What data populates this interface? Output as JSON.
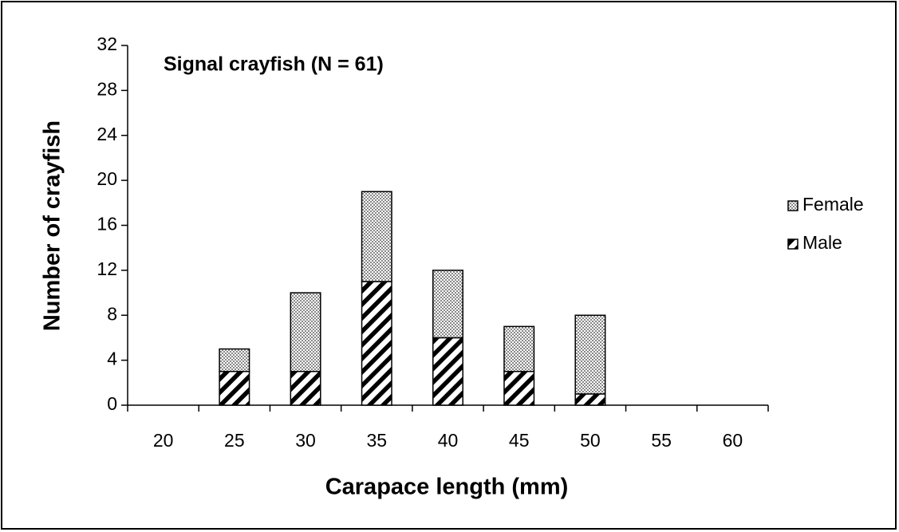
{
  "chart_data": {
    "type": "bar",
    "stacked": true,
    "title": "Signal crayfish (N = 61)",
    "x_label": "Carapace length (mm)",
    "y_label": "Number of crayfish",
    "categories": [
      "20",
      "25",
      "30",
      "35",
      "40",
      "45",
      "50",
      "55",
      "60"
    ],
    "series": [
      {
        "name": "Male",
        "color": "#000000",
        "pattern": "hatch",
        "values": [
          0,
          3,
          3,
          11,
          6,
          3,
          1,
          0,
          0
        ]
      },
      {
        "name": "Female",
        "color": "#000000",
        "pattern": "dots",
        "values": [
          0,
          2,
          7,
          8,
          6,
          4,
          7,
          0,
          0
        ]
      }
    ],
    "ylim": [
      0,
      32
    ],
    "yticks": [
      0,
      4,
      8,
      12,
      16,
      20,
      24,
      28,
      32
    ],
    "legend": "right"
  }
}
